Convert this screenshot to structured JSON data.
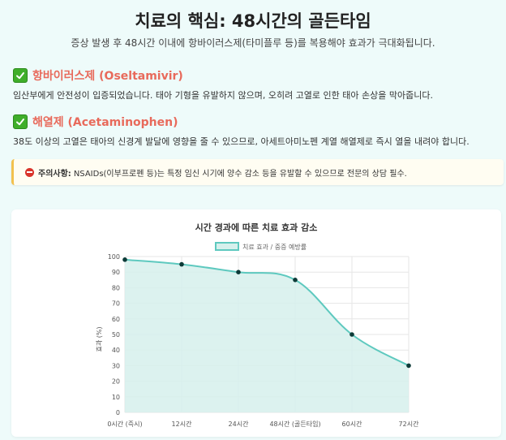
{
  "header": {
    "title": "치료의 핵심: 48시간의 골든타임",
    "subtitle": "증상 발생 후 48시간 이내에 항바이러스제(타미플루 등)를 복용해야 효과가 극대화됩니다."
  },
  "sections": [
    {
      "icon": "check-icon",
      "title": "항바이러스제 (Oseltamivir)",
      "body": "임산부에게 안전성이 입증되었습니다. 태아 기형을 유발하지 않으며, 오히려 고열로 인한 태아 손상을 막아줍니다."
    },
    {
      "icon": "check-icon",
      "title": "해열제 (Acetaminophen)",
      "body": "38도 이상의 고열은 태아의 신경계 발달에 영향을 줄 수 있으므로, 아세트아미노펜 계열 해열제로 즉시 열을 내려야 합니다."
    }
  ],
  "warning": {
    "icon": "no-entry-icon",
    "label": "주의사항:",
    "text": "NSAIDs(이부프로펜 등)는 특정 임신 시기에 양수 감소 등을 유발할 수 있으므로 전문의 상담 필수."
  },
  "colors": {
    "accent": "#e86a5b",
    "line": "#5ec9bf",
    "fill": "#d6f0ec",
    "point": "#0d3b38",
    "warning_border": "#f2c14e"
  },
  "chart_data": {
    "type": "area",
    "title": "시간 경과에 따른 치료 효과 감소",
    "xlabel": "",
    "ylabel": "효과 (%)",
    "categories": [
      "0시간 (즉시)",
      "12시간",
      "24시간",
      "48시간 (골든타임)",
      "60시간",
      "72시간"
    ],
    "series": [
      {
        "name": "치료 효과 / 중증 예방률",
        "values": [
          98,
          95,
          90,
          85,
          50,
          30
        ]
      }
    ],
    "ylim": [
      0,
      100
    ],
    "yticks": [
      0,
      10,
      20,
      30,
      40,
      50,
      60,
      70,
      80,
      90,
      100
    ],
    "grid": true,
    "legend": "top"
  }
}
